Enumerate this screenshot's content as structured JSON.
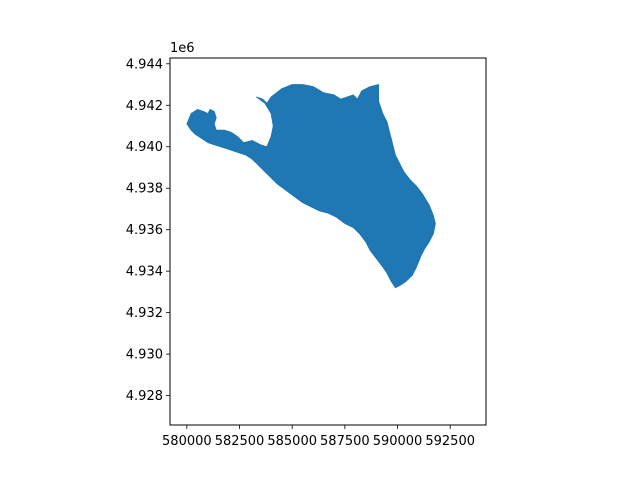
{
  "chart_data": {
    "type": "map",
    "title": "",
    "xlabel": "",
    "ylabel": "",
    "y_offset_label": "1e6",
    "xlim": [
      579200,
      594200
    ],
    "ylim": [
      4926580,
      4944280
    ],
    "xticks": [
      {
        "value": 580000,
        "label": "580000"
      },
      {
        "value": 582500,
        "label": "582500"
      },
      {
        "value": 585000,
        "label": "585000"
      },
      {
        "value": 587500,
        "label": "587500"
      },
      {
        "value": 590000,
        "label": "590000"
      },
      {
        "value": 592500,
        "label": "592500"
      }
    ],
    "yticks": [
      {
        "value": 4928000,
        "label": "4.928"
      },
      {
        "value": 4930000,
        "label": "4.930"
      },
      {
        "value": 4932000,
        "label": "4.932"
      },
      {
        "value": 4934000,
        "label": "4.934"
      },
      {
        "value": 4936000,
        "label": "4.936"
      },
      {
        "value": 4938000,
        "label": "4.938"
      },
      {
        "value": 4940000,
        "label": "4.940"
      },
      {
        "value": 4942000,
        "label": "4.942"
      },
      {
        "value": 4944000,
        "label": "4.944"
      }
    ],
    "fill_color": "#1f77b4",
    "polygon": [
      [
        580000,
        4941100
      ],
      [
        580200,
        4941600
      ],
      [
        580500,
        4941800
      ],
      [
        580800,
        4941700
      ],
      [
        581000,
        4941600
      ],
      [
        581100,
        4941800
      ],
      [
        581300,
        4941700
      ],
      [
        581400,
        4941400
      ],
      [
        581300,
        4941100
      ],
      [
        581400,
        4940800
      ],
      [
        581800,
        4940800
      ],
      [
        582100,
        4940700
      ],
      [
        582400,
        4940500
      ],
      [
        582700,
        4940200
      ],
      [
        583100,
        4940300
      ],
      [
        583500,
        4940100
      ],
      [
        583800,
        4940000
      ],
      [
        584000,
        4940500
      ],
      [
        584100,
        4941000
      ],
      [
        584000,
        4941600
      ],
      [
        583700,
        4942100
      ],
      [
        583300,
        4942400
      ],
      [
        583600,
        4942300
      ],
      [
        583800,
        4942100
      ],
      [
        584000,
        4942400
      ],
      [
        584500,
        4942800
      ],
      [
        585000,
        4943000
      ],
      [
        585500,
        4943000
      ],
      [
        586000,
        4942900
      ],
      [
        586500,
        4942600
      ],
      [
        587000,
        4942500
      ],
      [
        587300,
        4942300
      ],
      [
        587600,
        4942400
      ],
      [
        587900,
        4942500
      ],
      [
        588100,
        4942300
      ],
      [
        588300,
        4942700
      ],
      [
        588700,
        4942900
      ],
      [
        589100,
        4943000
      ],
      [
        589100,
        4942200
      ],
      [
        589300,
        4941600
      ],
      [
        589500,
        4941200
      ],
      [
        589600,
        4940800
      ],
      [
        589700,
        4940400
      ],
      [
        589800,
        4940000
      ],
      [
        589900,
        4939600
      ],
      [
        590100,
        4939200
      ],
      [
        590300,
        4938800
      ],
      [
        590600,
        4938400
      ],
      [
        590900,
        4938100
      ],
      [
        591200,
        4937700
      ],
      [
        591500,
        4937200
      ],
      [
        591700,
        4936700
      ],
      [
        591800,
        4936300
      ],
      [
        591700,
        4935800
      ],
      [
        591500,
        4935400
      ],
      [
        591300,
        4935100
      ],
      [
        591100,
        4934700
      ],
      [
        590900,
        4934200
      ],
      [
        590700,
        4933800
      ],
      [
        590400,
        4933500
      ],
      [
        590100,
        4933300
      ],
      [
        589900,
        4933200
      ],
      [
        589700,
        4933500
      ],
      [
        589500,
        4933900
      ],
      [
        589300,
        4934200
      ],
      [
        589000,
        4934600
      ],
      [
        588700,
        4935000
      ],
      [
        588500,
        4935400
      ],
      [
        588200,
        4935800
      ],
      [
        587900,
        4936100
      ],
      [
        587500,
        4936300
      ],
      [
        587100,
        4936600
      ],
      [
        586700,
        4936800
      ],
      [
        586300,
        4936900
      ],
      [
        585900,
        4937100
      ],
      [
        585500,
        4937300
      ],
      [
        585100,
        4937600
      ],
      [
        584700,
        4937900
      ],
      [
        584300,
        4938200
      ],
      [
        584000,
        4938500
      ],
      [
        583700,
        4938800
      ],
      [
        583400,
        4939100
      ],
      [
        583100,
        4939400
      ],
      [
        582800,
        4939600
      ],
      [
        582500,
        4939700
      ],
      [
        582200,
        4939800
      ],
      [
        581900,
        4939900
      ],
      [
        581600,
        4940000
      ],
      [
        581300,
        4940100
      ],
      [
        581000,
        4940200
      ],
      [
        580700,
        4940400
      ],
      [
        580400,
        4940600
      ],
      [
        580200,
        4940800
      ]
    ]
  }
}
